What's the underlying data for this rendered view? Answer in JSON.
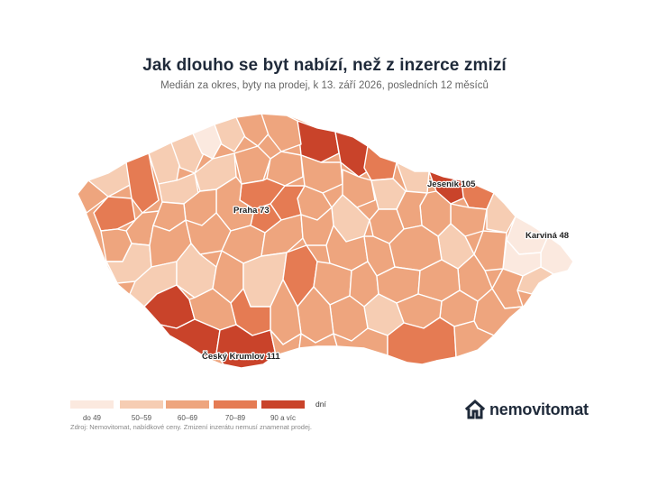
{
  "header": {
    "title": "Jak dlouho se byt nabízí, než z inzerce zmizí",
    "subtitle": "Medián za okres, byty na prodej, k 13. září 2026, posledních 12 měsíců"
  },
  "map": {
    "colors": {
      "bin_lt49": "#fbe9df",
      "bin_50_59": "#f6cdb3",
      "bin_60_69": "#eea57e",
      "bin_70_89": "#e57b53",
      "bin_90plus": "#c9432a",
      "boundary": "#ffffff"
    },
    "labels": [
      {
        "id": "praha",
        "text": "Praha 73",
        "value": 73
      },
      {
        "id": "jesenik",
        "text": "Jeseník 105",
        "value": 105
      },
      {
        "id": "karvina",
        "text": "Karviná 48",
        "value": 48
      },
      {
        "id": "krumlov",
        "text": "Český Krumlov 111",
        "value": 111
      }
    ]
  },
  "legend": {
    "items": [
      {
        "label": "do 49",
        "color": "#fbe9df"
      },
      {
        "label": "50–59",
        "color": "#f6cdb3"
      },
      {
        "label": "60–69",
        "color": "#eea57e"
      },
      {
        "label": "70–89",
        "color": "#e57b53"
      },
      {
        "label": "90 a víc",
        "color": "#c9432a"
      }
    ],
    "unit": "dní"
  },
  "footer": {
    "source": "Zdroj: Nemovitomat, nabídkové ceny. Zmizení inzerátu nemusí znamenat prodej.",
    "brand": "nemovitomat",
    "brand_icon": "house-logo-icon"
  }
}
